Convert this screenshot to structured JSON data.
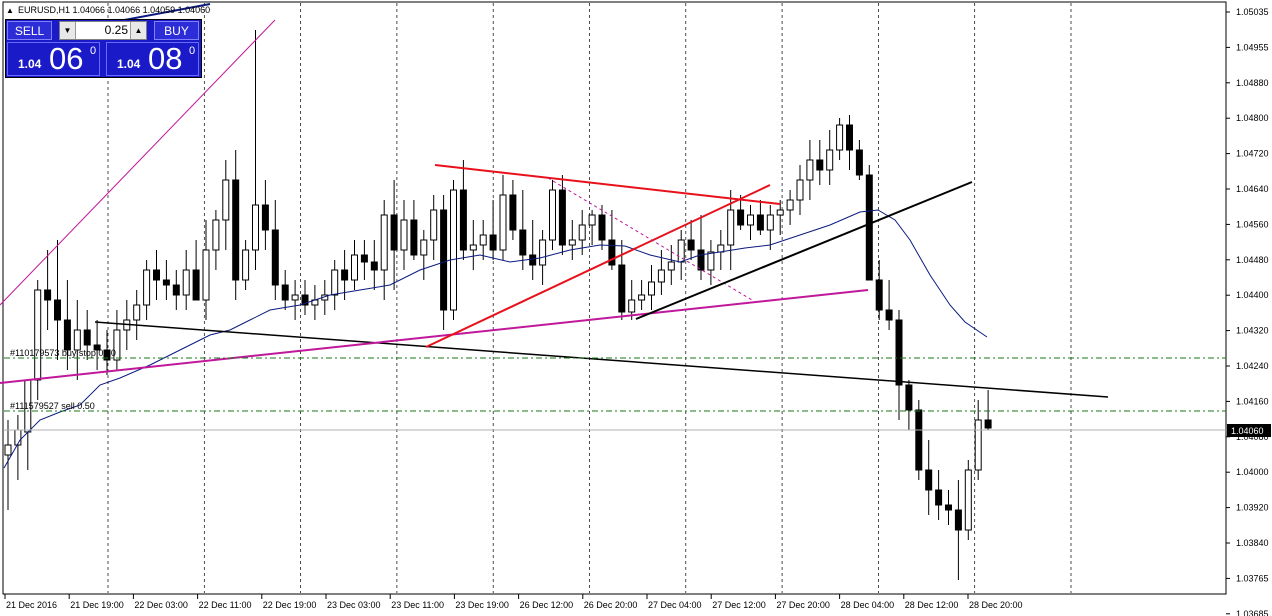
{
  "header": {
    "symbol_info": "EURUSD,H1  1.04066 1.04066 1.04059 1.04060"
  },
  "one_click": {
    "sell_label": "SELL",
    "buy_label": "BUY",
    "lot": "0.25",
    "bid_prefix": "1.04",
    "bid_big": "06",
    "bid_point": "0",
    "ask_prefix": "1.04",
    "ask_big": "08",
    "ask_point": "0"
  },
  "price_axis": {
    "ticks": [
      "1.05035",
      "1.04955",
      "1.04880",
      "1.04800",
      "1.04720",
      "1.04640",
      "1.04560",
      "1.04480",
      "1.04400",
      "1.04320",
      "1.04240",
      "1.04160",
      "1.04080",
      "1.04000",
      "1.03920",
      "1.03840",
      "1.03765",
      "1.03685"
    ],
    "current_price": "1.04060"
  },
  "time_axis": [
    "21 Dec 2016",
    "21 Dec 19:00",
    "22 Dec 03:00",
    "22 Dec 11:00",
    "22 Dec 19:00",
    "23 Dec 03:00",
    "23 Dec 11:00",
    "23 Dec 19:00",
    "26 Dec 12:00",
    "26 Dec 20:00",
    "27 Dec 04:00",
    "27 Dec 12:00",
    "27 Dec 20:00",
    "28 Dec 04:00",
    "28 Dec 12:00",
    "28 Dec 20:00"
  ],
  "order_labels": {
    "buy_stop": "#110179573 buy stop 0.90",
    "sell": "#111579527 sell 0.50"
  },
  "colors": {
    "trendline_red": "#e8101a",
    "trendline_magenta": "#c0189a",
    "ma_line": "#0a1a80",
    "order_line": "#1a7a1a"
  }
}
